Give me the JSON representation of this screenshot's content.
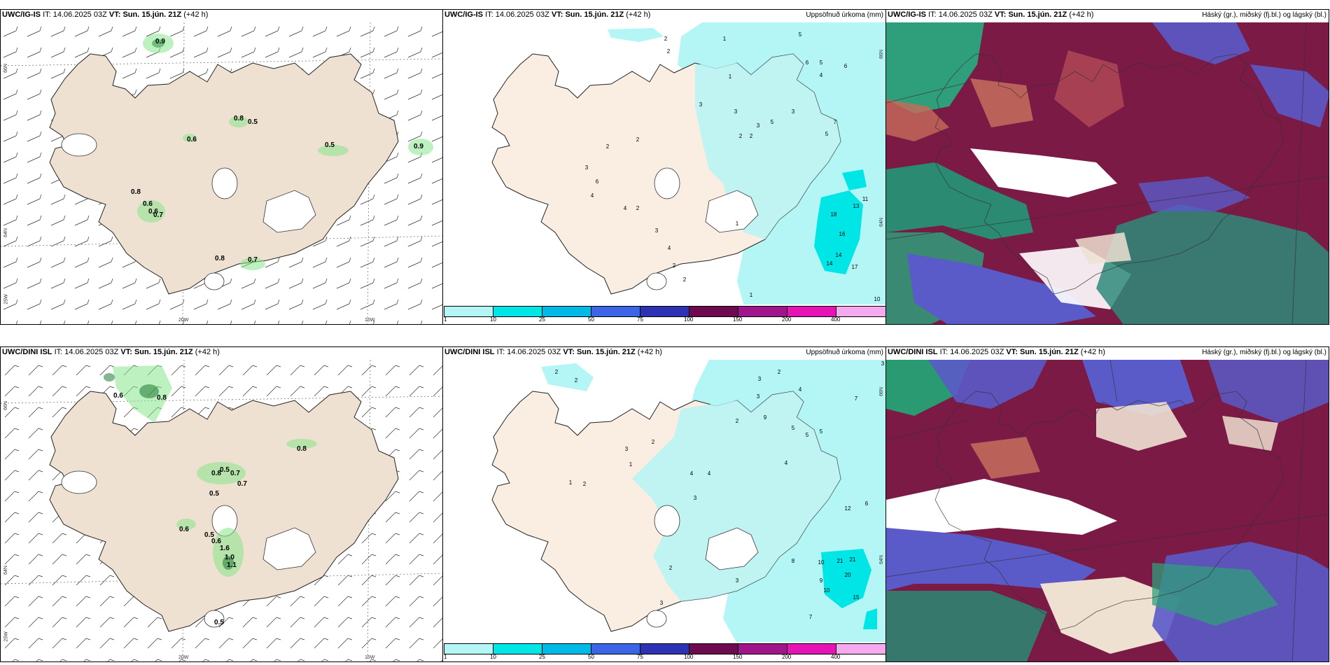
{
  "rows": [
    {
      "model": "UWC/IG-IS",
      "it_label": "IT:",
      "it_value": "14.06.2025 03Z",
      "vt_label": "VT:",
      "vt_value": "Sun. 15.jún. 21Z",
      "lead": "(+42 h)",
      "precip_title": "Uppsöfnuð úrkoma (mm)",
      "cloud_title": "Háský (gr.), miðský (fj.bl.) og lágský (bl.)",
      "lat_labels": [
        "66N",
        "64N",
        "66N",
        "64N"
      ],
      "lon_labels": [
        "25W",
        "20W",
        "15W"
      ],
      "wind_values": [
        "0.9",
        "0.8",
        "0.5",
        "0.6",
        "0.5",
        "0.8",
        "0.6",
        "0.6",
        "0.7",
        "0.8",
        "0.7",
        "0.9"
      ],
      "precip_numbers": [
        "2",
        "2",
        "1",
        "5",
        "6",
        "5",
        "6",
        "4",
        "1",
        "3",
        "3",
        "2",
        "2",
        "3",
        "5",
        "3",
        "7",
        "5",
        "2",
        "2",
        "6",
        "3",
        "4",
        "4",
        "2",
        "1",
        "3",
        "4",
        "2",
        "2",
        "18",
        "16",
        "14",
        "14",
        "17",
        "13",
        "11",
        "1",
        "10"
      ]
    },
    {
      "model": "UWC/DINI ISL",
      "it_label": "IT:",
      "it_value": "14.06.2025 03Z",
      "vt_label": "VT:",
      "vt_value": "Sun. 15.jún. 21Z",
      "lead": "(+42 h)",
      "precip_title": "Uppsöfnuð úrkoma (mm)",
      "cloud_title": "Háský (gr.), miðský (fj.bl.) og lágský (bl.)",
      "lat_labels": [
        "66N",
        "64N",
        "66N",
        "64N"
      ],
      "lon_labels": [
        "25W",
        "20W",
        "15W"
      ],
      "wind_values": [
        "0.6",
        "0.8",
        "0.8",
        "0.5",
        "0.7",
        "0.7",
        "0.5",
        "0.8",
        "0.6",
        "0.5",
        "0.6",
        "1.6",
        "1.0",
        "1.1",
        "0.5"
      ],
      "precip_numbers": [
        "2",
        "2",
        "3",
        "2",
        "3",
        "4",
        "7",
        "5",
        "2",
        "3",
        "9",
        "5",
        "5",
        "4",
        "2",
        "1",
        "3",
        "1",
        "2",
        "4",
        "4",
        "3",
        "12",
        "6",
        "21",
        "21",
        "20",
        "10",
        "10",
        "15",
        "8",
        "7",
        "9",
        "3",
        "2",
        "3"
      ]
    }
  ],
  "legend": {
    "labels": [
      "1",
      "10",
      "25",
      "50",
      "75",
      "100",
      "150",
      "200",
      "400"
    ],
    "colors": [
      "#b4f5f5",
      "#00e6e6",
      "#00b9e6",
      "#3c64e6",
      "#2d32b4",
      "#6e0a50",
      "#a0148c",
      "#e614b4",
      "#f5aaf0"
    ]
  }
}
